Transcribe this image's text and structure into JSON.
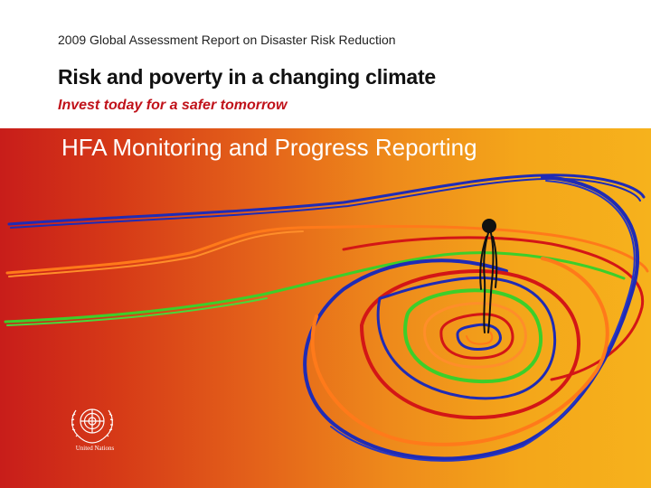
{
  "header": {
    "report_line": "2009 Global Assessment Report on Disaster Risk Reduction",
    "main_title": "Risk and poverty in a changing climate",
    "tagline": "Invest today for a safer tomorrow"
  },
  "slide": {
    "title": "HFA Monitoring and Progress Reporting"
  },
  "footer": {
    "organization": "United Nations"
  },
  "colors": {
    "tagline": "#c0121a",
    "gradient_left": "#c81d1a",
    "gradient_right": "#f6b21c",
    "line_blue": "#1f2bb5",
    "line_green": "#3ccf2a",
    "line_red": "#d31616",
    "line_orange": "#ff7a1a"
  },
  "icons": [
    "un-emblem-icon",
    "standing-figure-icon"
  ]
}
